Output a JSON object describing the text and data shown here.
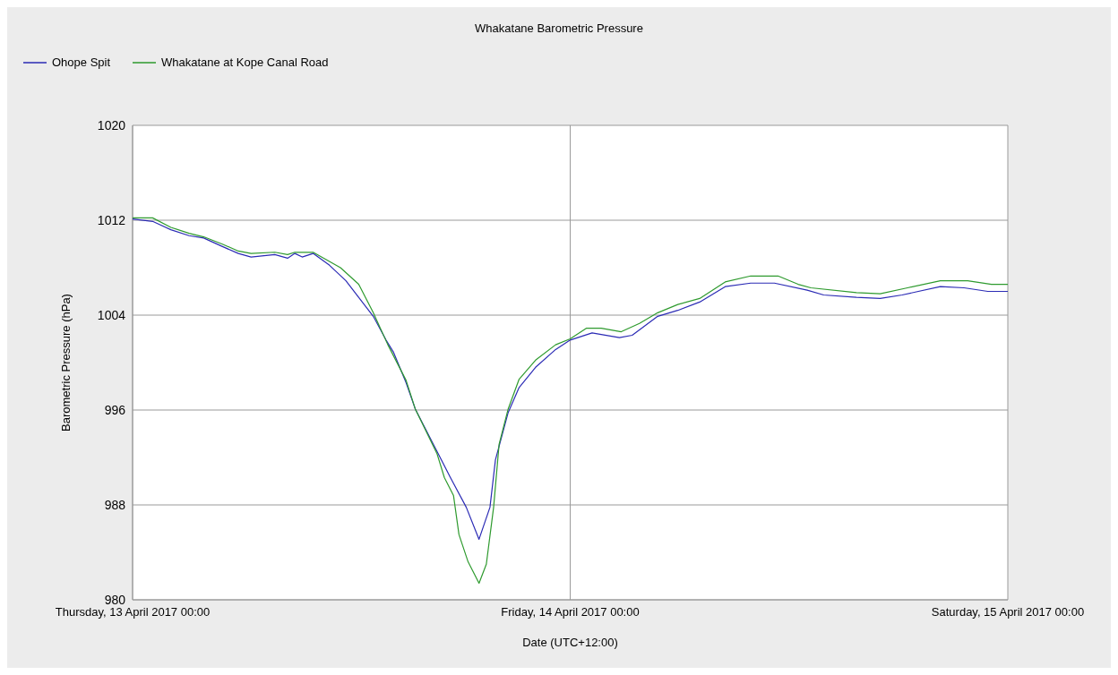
{
  "chart_data": {
    "type": "line",
    "title": "Whakatane Barometric Pressure",
    "xlabel": "Date (UTC+12:00)",
    "ylabel": "Barometric Pressure (hPa)",
    "xlim": [
      "2017-04-13T00:00",
      "2017-04-15T00:00"
    ],
    "xticks": [
      {
        "value": "2017-04-13T00:00",
        "label": "Thursday, 13 April 2017 00:00"
      },
      {
        "value": "2017-04-14T00:00",
        "label": "Friday, 14 April 2017 00:00"
      },
      {
        "value": "2017-04-15T00:00",
        "label": "Saturday, 15 April 2017 00:00"
      }
    ],
    "ylim": [
      980,
      1020
    ],
    "yticks": [
      980,
      988,
      996,
      1004,
      1012,
      1020
    ],
    "grid": true,
    "legend": "top left",
    "line_style": "solid",
    "marker": "none",
    "series": [
      {
        "name": "Ohope Spit",
        "color": "#2b2bb5",
        "x": [
          "2017-04-13T00:00",
          "2017-04-13T01:06",
          "2017-04-13T02:06",
          "2017-04-13T03:06",
          "2017-04-13T03:54",
          "2017-04-13T04:54",
          "2017-04-13T05:48",
          "2017-04-13T06:30",
          "2017-04-13T07:48",
          "2017-04-13T08:30",
          "2017-04-13T08:54",
          "2017-04-13T09:18",
          "2017-04-13T09:54",
          "2017-04-13T10:48",
          "2017-04-13T11:42",
          "2017-04-13T12:42",
          "2017-04-13T13:12",
          "2017-04-13T13:54",
          "2017-04-13T14:18",
          "2017-04-13T15:00",
          "2017-04-13T15:30",
          "2017-04-13T16:30",
          "2017-04-13T17:24",
          "2017-04-13T18:18",
          "2017-04-13T19:00",
          "2017-04-13T19:36",
          "2017-04-13T19:54",
          "2017-04-13T20:36",
          "2017-04-13T21:12",
          "2017-04-13T22:06",
          "2017-04-13T23:12",
          "2017-04-14T00:00",
          "2017-04-14T01:12",
          "2017-04-14T02:42",
          "2017-04-14T03:24",
          "2017-04-14T04:48",
          "2017-04-14T05:54",
          "2017-04-14T07:06",
          "2017-04-14T08:30",
          "2017-04-14T09:54",
          "2017-04-14T11:12",
          "2017-04-14T13:00",
          "2017-04-14T13:54",
          "2017-04-14T15:42",
          "2017-04-14T17:00",
          "2017-04-14T18:12",
          "2017-04-14T20:18",
          "2017-04-14T21:36",
          "2017-04-14T22:54",
          "2017-04-15T00:00"
        ],
        "values": [
          1012.1,
          1011.9,
          1011.2,
          1010.7,
          1010.5,
          1009.8,
          1009.2,
          1008.9,
          1009.1,
          1008.8,
          1009.2,
          1008.9,
          1009.2,
          1008.2,
          1006.9,
          1004.9,
          1003.9,
          1001.9,
          1000.9,
          998.3,
          996.1,
          993.1,
          990.4,
          987.8,
          985.1,
          987.8,
          991.8,
          995.8,
          997.9,
          999.6,
          1001.1,
          1001.9,
          1002.5,
          1002.1,
          1002.3,
          1003.9,
          1004.4,
          1005.1,
          1006.4,
          1006.7,
          1006.7,
          1006.1,
          1005.7,
          1005.5,
          1005.4,
          1005.7,
          1006.4,
          1006.3,
          1006.0,
          1006.0
        ]
      },
      {
        "name": "Whakatane at Kope Canal Road",
        "color": "#2e9a2e",
        "x": [
          "2017-04-13T00:00",
          "2017-04-13T01:06",
          "2017-04-13T02:06",
          "2017-04-13T03:06",
          "2017-04-13T03:54",
          "2017-04-13T04:54",
          "2017-04-13T05:48",
          "2017-04-13T06:30",
          "2017-04-13T07:48",
          "2017-04-13T08:30",
          "2017-04-13T08:54",
          "2017-04-13T09:54",
          "2017-04-13T11:24",
          "2017-04-13T12:24",
          "2017-04-13T13:12",
          "2017-04-13T14:00",
          "2017-04-13T15:00",
          "2017-04-13T15:30",
          "2017-04-13T16:42",
          "2017-04-13T17:06",
          "2017-04-13T17:36",
          "2017-04-13T17:54",
          "2017-04-13T18:24",
          "2017-04-13T19:00",
          "2017-04-13T19:24",
          "2017-04-13T19:48",
          "2017-04-13T20:06",
          "2017-04-13T20:36",
          "2017-04-13T21:12",
          "2017-04-13T22:06",
          "2017-04-13T23:12",
          "2017-04-14T00:00",
          "2017-04-14T00:54",
          "2017-04-14T01:42",
          "2017-04-14T02:48",
          "2017-04-14T03:48",
          "2017-04-14T04:48",
          "2017-04-14T05:54",
          "2017-04-14T07:06",
          "2017-04-14T08:30",
          "2017-04-14T09:54",
          "2017-04-14T11:24",
          "2017-04-14T12:30",
          "2017-04-14T13:12",
          "2017-04-14T15:42",
          "2017-04-14T17:00",
          "2017-04-14T18:30",
          "2017-04-14T20:18",
          "2017-04-14T21:48",
          "2017-04-14T23:06",
          "2017-04-15T00:00"
        ],
        "values": [
          1012.2,
          1012.2,
          1011.4,
          1010.9,
          1010.6,
          1010.0,
          1009.4,
          1009.2,
          1009.3,
          1009.1,
          1009.3,
          1009.3,
          1008.0,
          1006.6,
          1004.2,
          1001.5,
          998.5,
          996.1,
          992.3,
          990.3,
          988.8,
          985.5,
          983.2,
          981.4,
          983.0,
          987.8,
          993.1,
          996.1,
          998.6,
          1000.2,
          1001.5,
          1002.0,
          1002.9,
          1002.9,
          1002.6,
          1003.3,
          1004.2,
          1004.9,
          1005.4,
          1006.8,
          1007.3,
          1007.3,
          1006.6,
          1006.3,
          1005.9,
          1005.8,
          1006.3,
          1006.9,
          1006.9,
          1006.6,
          1006.6
        ]
      }
    ]
  }
}
